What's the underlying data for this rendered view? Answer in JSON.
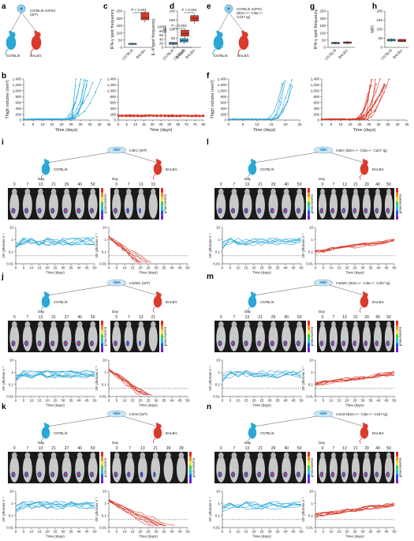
{
  "colors": {
    "blue": "#2aa7d6",
    "red": "#d93a2b",
    "dark": "#222222"
  },
  "panel_letters": [
    "a",
    "b",
    "c",
    "d",
    "e",
    "f",
    "g",
    "h",
    "i",
    "j",
    "k",
    "l",
    "m",
    "n"
  ],
  "strains": {
    "b6": "C57BL/6",
    "balb": "BALB/c"
  },
  "day_word": "Day",
  "a_title": "C57BL/6 miPSC\n(WT)",
  "e_title": "C57BL/6 miPSC\n(B2m−/− Ciita−/−\nCd47 tg)",
  "c": {
    "ylabel1": "IFN-γ spot frequency",
    "p1": "P < 0.001",
    "ylabel2": "IL-4 spot frequency",
    "p2": "P = 0.003",
    "ticks1": [
      "0",
      "50",
      "100",
      "150",
      "200",
      "250"
    ],
    "ticks2": [
      "0",
      "20",
      "40",
      "60",
      "80",
      "100"
    ]
  },
  "d": {
    "ylabel": "MFI",
    "p": "P < 0.001",
    "ticks": [
      "0",
      "50",
      "100",
      "150",
      "200"
    ]
  },
  "g": {
    "ylabel1": "IFN-γ spot frequency",
    "ylabel2": "IL-4 spot frequency",
    "ticks1": [
      "0",
      "50",
      "100",
      "150",
      "200",
      "250"
    ],
    "ticks2": [
      "0",
      "20",
      "40",
      "60",
      "80",
      "100"
    ]
  },
  "h": {
    "ylabel": "MFI",
    "ticks": [
      "0",
      "50",
      "100",
      "150",
      "200"
    ]
  },
  "b": {
    "ylabel": "Thigh volume (mm³)",
    "xlabel": "Time (days)",
    "yticks": [
      "0",
      "200",
      "400",
      "600",
      "800",
      "1,000",
      "1,200",
      "1,400"
    ],
    "xticks_left": [
      "0",
      "5",
      "10",
      "15",
      "20",
      "25",
      "30",
      "35",
      "40",
      "45"
    ],
    "xticks_right": [
      "0",
      "5",
      "10",
      "15",
      "20",
      "25",
      "30",
      "35",
      "70",
      "75",
      "80"
    ]
  },
  "f": {
    "ylabel": "Thigh volume (mm³)",
    "xlabel": "Time (days)",
    "yticks": [
      "0",
      "200",
      "400",
      "600",
      "800",
      "1,000",
      "1,200",
      "1,400"
    ],
    "xticks_left": [
      "0",
      "5",
      "10",
      "15",
      "20",
      "25"
    ],
    "xticks_right": [
      "0",
      "5",
      "10",
      "15",
      "20",
      "25",
      "30",
      "35",
      "40",
      "45"
    ]
  },
  "bli": {
    "ylabel": "10⁶ photons s⁻¹",
    "xlabel": "Time (days)",
    "yticks": [
      "10",
      "1",
      "0.1",
      "0.01"
    ],
    "xticks": [
      "0",
      "5",
      "10",
      "15",
      "20",
      "25",
      "30",
      "35",
      "40",
      "45",
      "50"
    ],
    "colorbar_label": "p/sec/cm²/sr"
  },
  "i": {
    "title": "miEC (WT)",
    "days_b6": [
      "0",
      "7",
      "13",
      "21",
      "29",
      "40",
      "50"
    ],
    "days_balb": [
      "0",
      "7",
      "13",
      "19"
    ]
  },
  "j": {
    "title": "miSMC (WT)",
    "days_b6": [
      "0",
      "7",
      "13",
      "21",
      "27",
      "40",
      "50"
    ],
    "days_balb": [
      "0",
      "7",
      "13",
      "21"
    ]
  },
  "k": {
    "title": "miCM (WT)",
    "days_b6": [
      "0",
      "7",
      "13",
      "21",
      "27",
      "40",
      "50"
    ],
    "days_balb": [
      "0",
      "7",
      "13",
      "21",
      "29",
      "39"
    ]
  },
  "l": {
    "title": "miEC (B2m−/− Ciita−/− Cd47 tg)",
    "days_b6": [
      "0",
      "7",
      "13",
      "21",
      "29",
      "40",
      "50"
    ],
    "days_balb": [
      "0",
      "7",
      "13",
      "21",
      "29",
      "40",
      "50"
    ]
  },
  "m": {
    "title": "miSMC (B2m−/− Ciita−/− Cd47 tg)",
    "days_b6": [
      "0",
      "7",
      "13",
      "21",
      "29",
      "40",
      "50"
    ],
    "days_balb": [
      "0",
      "7",
      "13",
      "21",
      "29",
      "40",
      "50"
    ]
  },
  "n": {
    "title": "miCM (B2m−/− Ciita−/− Cd47 tg)",
    "days_b6": [
      "0",
      "7",
      "13",
      "21",
      "29",
      "40",
      "50"
    ],
    "days_balb": [
      "0",
      "7",
      "13",
      "21",
      "29",
      "40",
      "50"
    ]
  },
  "box_labels": {
    "b6": "C57BL/6",
    "balb": "BALB/c"
  }
}
